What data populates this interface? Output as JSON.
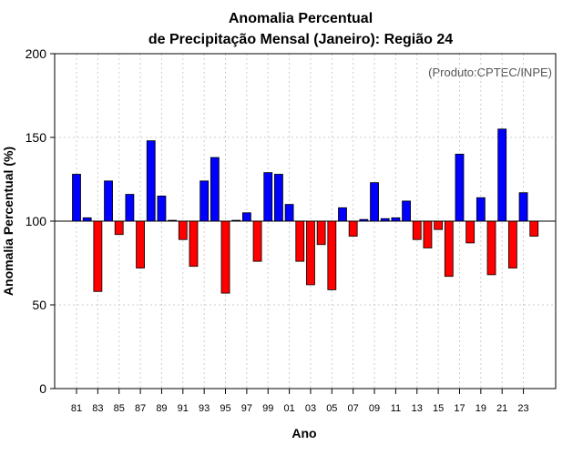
{
  "chart_data": {
    "type": "bar",
    "title_line1": "Anomalia Percentual",
    "title_line2": "de Precipitação Mensal (Janeiro): Região 24",
    "xlabel": "Ano",
    "ylabel": "Anomalia Percentual (%)",
    "note": "(Produto:CPTEC/INPE)",
    "baseline": 100,
    "ylim": [
      0,
      200
    ],
    "yticks": [
      0,
      50,
      100,
      150,
      200
    ],
    "categories": [
      "81",
      "82",
      "83",
      "84",
      "85",
      "86",
      "87",
      "88",
      "89",
      "90",
      "91",
      "92",
      "93",
      "94",
      "95",
      "96",
      "97",
      "98",
      "99",
      "00",
      "01",
      "02",
      "03",
      "04",
      "05",
      "06",
      "07",
      "08",
      "09",
      "10",
      "11",
      "12",
      "13",
      "14",
      "15",
      "16",
      "17",
      "18",
      "19",
      "20",
      "21",
      "22",
      "23",
      "24"
    ],
    "xtick_labels": [
      "81",
      "83",
      "85",
      "87",
      "89",
      "91",
      "93",
      "95",
      "97",
      "99",
      "01",
      "03",
      "05",
      "07",
      "09",
      "11",
      "13",
      "15",
      "17",
      "19",
      "21",
      "23"
    ],
    "values": [
      128,
      102,
      58,
      124,
      92,
      116,
      72,
      148,
      115,
      100.5,
      89,
      73,
      124,
      138,
      57,
      100.5,
      105,
      76,
      129,
      128,
      110,
      76,
      62,
      86,
      59,
      108,
      91,
      101,
      123,
      101.5,
      102,
      112,
      89,
      84,
      95,
      67,
      140,
      87,
      114,
      68,
      155,
      72,
      117,
      91
    ],
    "colors": {
      "above": "#0000ff",
      "below": "#ff0000",
      "grid": "#cccccc",
      "axis": "#000000"
    }
  }
}
